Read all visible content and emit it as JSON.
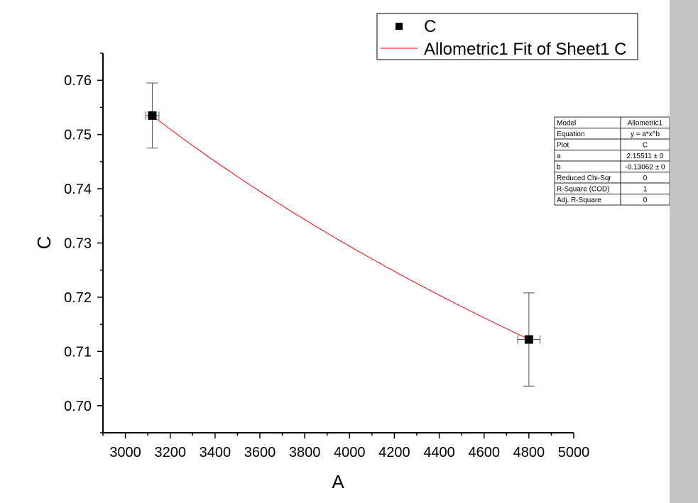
{
  "chart_data": {
    "type": "scatter",
    "xlabel": "A",
    "ylabel": "C",
    "xlim": [
      2900,
      5000
    ],
    "ylim": [
      0.695,
      0.765
    ],
    "x_ticks": [
      3000,
      3200,
      3400,
      3600,
      3800,
      4000,
      4200,
      4400,
      4600,
      4800,
      5000
    ],
    "y_ticks": [
      0.7,
      0.71,
      0.72,
      0.73,
      0.74,
      0.75,
      0.76
    ],
    "x_tick_labels": [
      "3000",
      "3200",
      "3400",
      "3600",
      "3800",
      "4000",
      "4200",
      "4400",
      "4600",
      "4800",
      "5000"
    ],
    "y_tick_labels": [
      "0.70",
      "0.71",
      "0.72",
      "0.73",
      "0.74",
      "0.75",
      "0.76"
    ],
    "grid": false,
    "legend_position": "top-right",
    "series": [
      {
        "name": "C",
        "kind": "scatter",
        "marker": "square",
        "color": "#000000",
        "points": [
          {
            "x": 3120,
            "y": 0.7535,
            "x_err": 30,
            "y_err": 0.006
          },
          {
            "x": 4800,
            "y": 0.7122,
            "x_err": 50,
            "y_err": 0.0086
          }
        ]
      },
      {
        "name": "Allometric1 Fit of Sheet1 C",
        "kind": "fit-line",
        "color": "#ff0000",
        "model": {
          "a": 2.15511,
          "b": -0.13062
        },
        "x_range": [
          3120,
          4800
        ]
      }
    ],
    "stats_table": [
      {
        "key": "Model",
        "value": "Allometric1"
      },
      {
        "key": "Equation",
        "value": "y = a*x^b"
      },
      {
        "key": "Plot",
        "value": "C"
      },
      {
        "key": "a",
        "value": "2.15511 ± 0"
      },
      {
        "key": "b",
        "value": "-0.13062 ± 0"
      },
      {
        "key": "Reduced Chi-Sqr",
        "value": "0"
      },
      {
        "key": "R-Square (COD)",
        "value": "1"
      },
      {
        "key": "Adj. R-Square",
        "value": "0"
      }
    ]
  }
}
